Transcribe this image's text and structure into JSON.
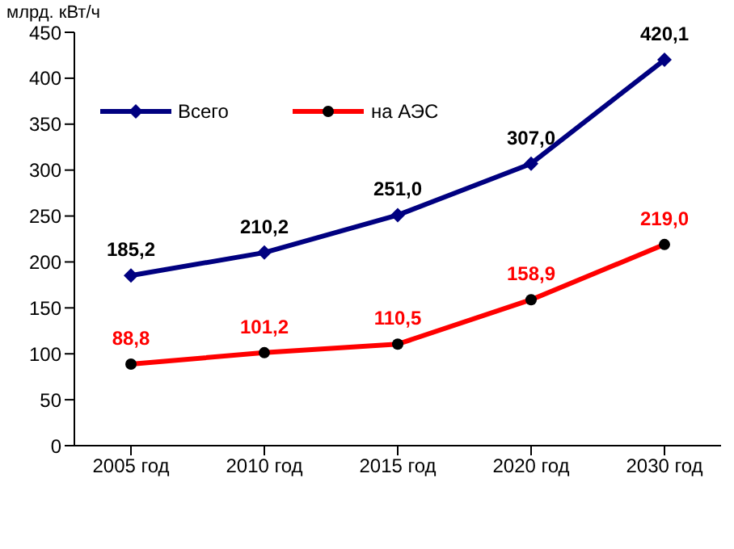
{
  "chart_data": {
    "type": "line",
    "ylabel": "млрд. кВт/ч",
    "categories": [
      "2005 год",
      "2010 год",
      "2015 год",
      "2020 год",
      "2030 год"
    ],
    "series": [
      {
        "name": "Всего",
        "color": "#000080",
        "marker": "diamond",
        "values": [
          185.2,
          210.2,
          251.0,
          307.0,
          420.1
        ],
        "value_labels": [
          "185,2",
          "210,2",
          "251,0",
          "307,0",
          "420,1"
        ]
      },
      {
        "name": "на АЭС",
        "color": "#ff0000",
        "marker": "circle",
        "values": [
          88.8,
          101.2,
          110.5,
          158.9,
          219.0
        ],
        "value_labels": [
          "88,8",
          "101,2",
          "110,5",
          "158,9",
          "219,0"
        ]
      }
    ],
    "ylim": [
      0,
      450
    ],
    "yticks": [
      0,
      50,
      100,
      150,
      200,
      250,
      300,
      350,
      400,
      450
    ],
    "grid": false,
    "legend": "top left"
  }
}
